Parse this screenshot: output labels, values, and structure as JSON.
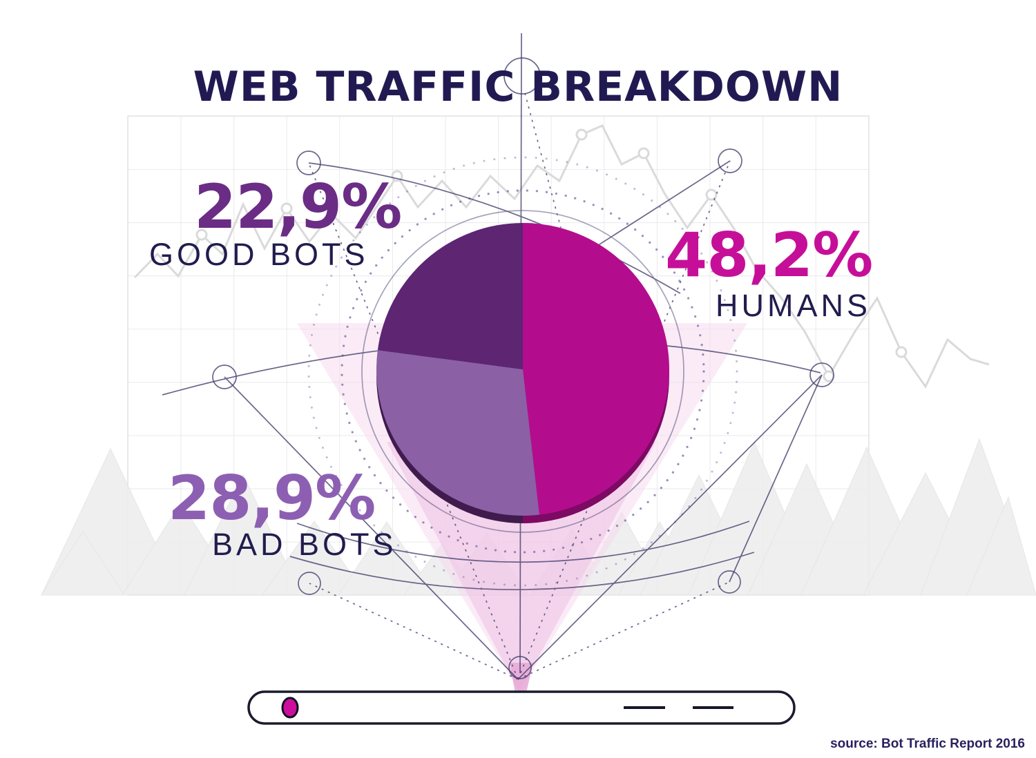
{
  "title": "WEB TRAFFIC BREAKDOWN",
  "source_text": "source: Bot Traffic Report 2016",
  "chart_data": {
    "type": "pie",
    "title": "WEB TRAFFIC BREAKDOWN",
    "start_angle_deg": 0,
    "direction": "clockwise",
    "slices": [
      {
        "label": "HUMANS",
        "value": 48.2,
        "display": "48,2%",
        "color": "#b30d8e",
        "label_color": "#c60f99"
      },
      {
        "label": "BAD BOTS",
        "value": 28.9,
        "display": "28,9%",
        "color": "#8b60a5",
        "label_color": "#8d5fb2"
      },
      {
        "label": "GOOD BOTS",
        "value": 22.9,
        "display": "22,9%",
        "color": "#5d2572",
        "label_color": "#6b2c85"
      }
    ],
    "annotation_text_color": "#211c4e",
    "source": "source: Bot Traffic Report 2016"
  },
  "palette": {
    "title_navy": "#211a52",
    "web_line_navy": "#45406e",
    "dotted_ring_purple": "#7668a4",
    "grid_gray": "#e3e3e7",
    "decoration_gray": "#dadada",
    "mountain_gray": "#ededed",
    "pink_cone": "#f0c3e6",
    "browser_dot_magenta": "#cc0f9b",
    "browser_outline": "#1b1b2e"
  },
  "browser_bar": {
    "dot_icon": "magenta-status-dot",
    "menu_lines": 2
  }
}
